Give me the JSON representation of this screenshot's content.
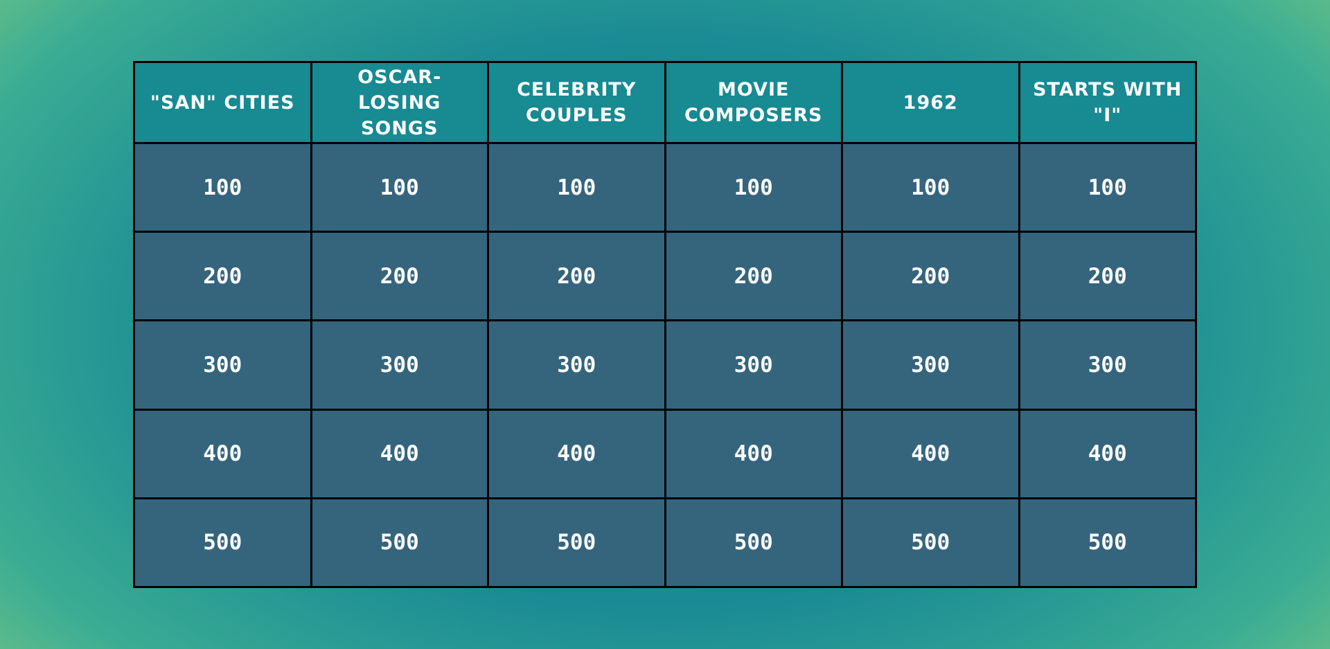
{
  "board": {
    "columns": [
      {
        "title": "\"SAN\" CITIES",
        "values": [
          100,
          200,
          300,
          400,
          500
        ]
      },
      {
        "title": "OSCAR-LOSING SONGS",
        "values": [
          100,
          200,
          300,
          400,
          500
        ]
      },
      {
        "title": "CELEBRITY COUPLES",
        "values": [
          100,
          200,
          300,
          400,
          500
        ]
      },
      {
        "title": "MOVIE COMPOSERS",
        "values": [
          100,
          200,
          300,
          400,
          500
        ]
      },
      {
        "title": "1962",
        "values": [
          100,
          200,
          300,
          400,
          500
        ]
      },
      {
        "title": "STARTS WITH \"I\"",
        "values": [
          100,
          200,
          300,
          400,
          500
        ]
      }
    ]
  }
}
